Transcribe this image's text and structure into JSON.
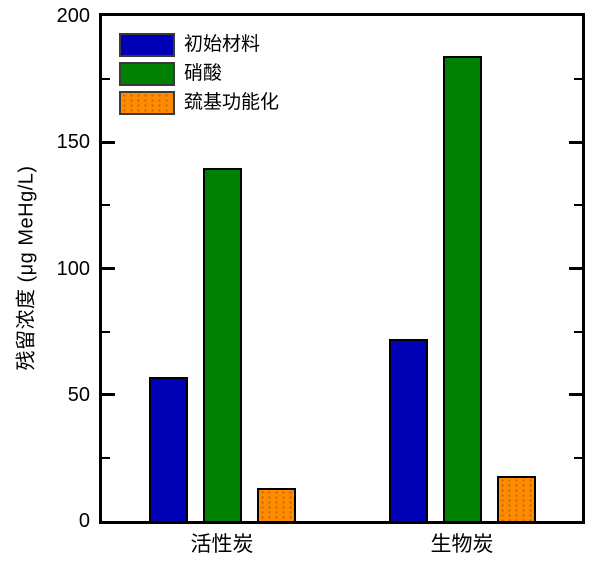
{
  "chart_data": {
    "type": "bar",
    "title": "",
    "xlabel": "",
    "ylabel": "残留浓度 (μg MeHg/L)",
    "categories": [
      "活性炭",
      "生物炭"
    ],
    "series": [
      {
        "name": "初始材料",
        "color": "#0000B4",
        "pattern": "solid",
        "values": [
          57,
          72
        ]
      },
      {
        "name": "硝酸",
        "color": "#008000",
        "pattern": "solid",
        "values": [
          140,
          184
        ]
      },
      {
        "name": "巯基功能化",
        "color": "#FF8C00",
        "pattern": "dots",
        "values": [
          13,
          18
        ]
      }
    ],
    "ylim": [
      0,
      200
    ],
    "y_major_ticks": [
      0,
      50,
      100,
      150,
      200
    ],
    "y_tick_labels": [
      "0",
      "50",
      "100",
      "150",
      "200"
    ],
    "y_minor_ticks": [
      25,
      75,
      125,
      175
    ],
    "grid": false,
    "legend_position": "top-left",
    "frame_color": "#000000",
    "background_color": "#ffffff"
  }
}
